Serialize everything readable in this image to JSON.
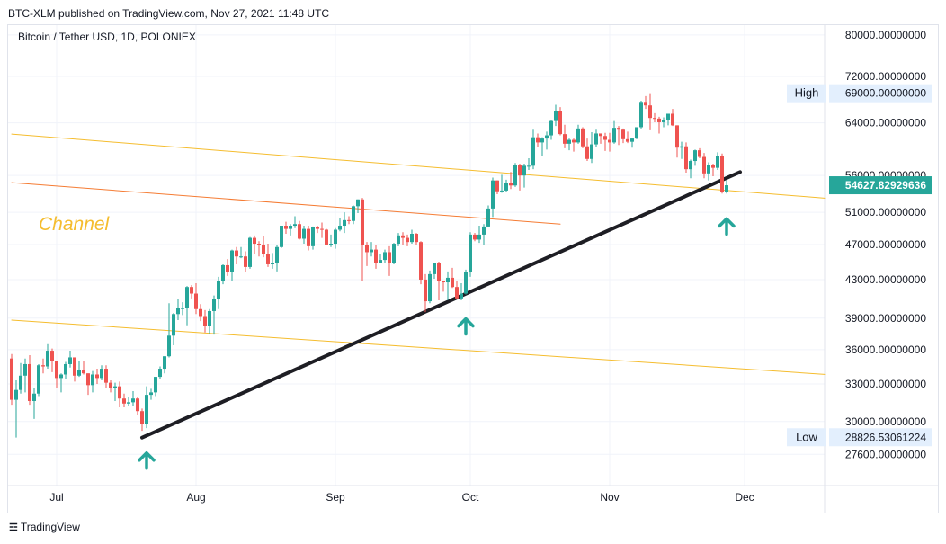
{
  "header": {
    "published_text": "BTC-XLM published on TradingView.com, Nov 27, 2021 11:48 UTC"
  },
  "footer": {
    "logo_icon": "tradingview-logo-icon",
    "brand": "TradingView"
  },
  "chart_data": {
    "type": "candlestick",
    "title": "Bitcoin / Tether USD, 1D, POLONIEX",
    "annotation": "Channel",
    "colors": {
      "up": "#26a69a",
      "down": "#ef5350",
      "wick": "#131722",
      "channel": "#f5bd2f",
      "channel_mid": "#f57c34",
      "trendline": "#1e1e24",
      "arrow": "#26a69a",
      "current_price_bg": "#26a69a"
    },
    "y_scale": "log",
    "ylim": [
      25500,
      82000
    ],
    "x_ticks": [
      {
        "label": "Jul",
        "date": "2021-07-01"
      },
      {
        "label": "Aug",
        "date": "2021-08-01"
      },
      {
        "label": "Sep",
        "date": "2021-09-01"
      },
      {
        "label": "Oct",
        "date": "2021-10-01"
      },
      {
        "label": "Nov",
        "date": "2021-11-01"
      },
      {
        "label": "Dec",
        "date": "2021-12-01"
      }
    ],
    "y_ticks": [
      "80000.00000000",
      "72000.00000000",
      "64000.00000000",
      "56000.00000000",
      "51000.00000000",
      "47000.00000000",
      "43000.00000000",
      "39000.00000000",
      "36000.00000000",
      "33000.00000000",
      "30000.00000000",
      "27600.00000000"
    ],
    "high": {
      "label": "High",
      "value": "69000.00000000"
    },
    "low": {
      "label": "Low",
      "value": "28826.53061224"
    },
    "last_price": "54627.82929636",
    "lines": [
      {
        "name": "channel-upper",
        "from": [
          "2021-06-21",
          62200
        ],
        "to": [
          "2021-12-31",
          52300
        ]
      },
      {
        "name": "channel-middle",
        "from": [
          "2021-06-21",
          55000
        ],
        "to": [
          "2021-10-21",
          49500
        ]
      },
      {
        "name": "channel-lower",
        "from": [
          "2021-06-21",
          38800
        ],
        "to": [
          "2021-12-31",
          33500
        ]
      },
      {
        "name": "support-trendline",
        "from": [
          "2021-07-20",
          28800
        ],
        "to": [
          "2021-11-30",
          56500
        ]
      }
    ],
    "arrows": [
      {
        "date": "2021-07-21",
        "value": 28600
      },
      {
        "date": "2021-09-30",
        "value": 40200
      },
      {
        "date": "2021-11-27",
        "value": 51800
      }
    ],
    "candles": [
      [
        "2021-06-21",
        35200,
        35600,
        31300,
        31700
      ],
      [
        "2021-06-22",
        31700,
        33300,
        28800,
        32500
      ],
      [
        "2021-06-23",
        32500,
        34800,
        32200,
        33700
      ],
      [
        "2021-06-24",
        33700,
        35200,
        32300,
        34700
      ],
      [
        "2021-06-25",
        34700,
        35500,
        31300,
        31600
      ],
      [
        "2021-06-26",
        31600,
        32700,
        30200,
        32200
      ],
      [
        "2021-06-27",
        32200,
        34700,
        32000,
        34600
      ],
      [
        "2021-06-28",
        34600,
        35200,
        33900,
        34500
      ],
      [
        "2021-06-29",
        34500,
        36500,
        34300,
        35900
      ],
      [
        "2021-06-30",
        35900,
        36100,
        34000,
        35000
      ],
      [
        "2021-07-01",
        35000,
        35000,
        32700,
        33500
      ],
      [
        "2021-07-02",
        33500,
        33900,
        32300,
        33800
      ],
      [
        "2021-07-03",
        33800,
        34900,
        33400,
        34700
      ],
      [
        "2021-07-04",
        34700,
        35900,
        34400,
        35300
      ],
      [
        "2021-07-05",
        35300,
        35300,
        33200,
        33700
      ],
      [
        "2021-07-06",
        33700,
        35000,
        33600,
        34200
      ],
      [
        "2021-07-07",
        34200,
        35000,
        33800,
        33900
      ],
      [
        "2021-07-08",
        33900,
        33900,
        32100,
        32900
      ],
      [
        "2021-07-09",
        32900,
        34100,
        32300,
        33800
      ],
      [
        "2021-07-10",
        33800,
        34300,
        33000,
        33500
      ],
      [
        "2021-07-11",
        33500,
        34600,
        33300,
        34300
      ],
      [
        "2021-07-12",
        34300,
        34600,
        32700,
        33100
      ],
      [
        "2021-07-13",
        33100,
        33300,
        32300,
        32700
      ],
      [
        "2021-07-14",
        32700,
        33100,
        31600,
        32800
      ],
      [
        "2021-07-15",
        32800,
        33200,
        31100,
        31800
      ],
      [
        "2021-07-16",
        31800,
        32200,
        31100,
        31400
      ],
      [
        "2021-07-17",
        31400,
        31900,
        31200,
        31500
      ],
      [
        "2021-07-18",
        31500,
        32400,
        31200,
        31800
      ],
      [
        "2021-07-19",
        31800,
        31900,
        30500,
        30800
      ],
      [
        "2021-07-20",
        30800,
        31000,
        29300,
        29800
      ],
      [
        "2021-07-21",
        29800,
        32800,
        29500,
        32100
      ],
      [
        "2021-07-22",
        32100,
        32600,
        31700,
        32300
      ],
      [
        "2021-07-23",
        32300,
        33600,
        32000,
        33600
      ],
      [
        "2021-07-24",
        33600,
        34500,
        33400,
        34300
      ],
      [
        "2021-07-25",
        34300,
        35400,
        33900,
        35400
      ],
      [
        "2021-07-26",
        35400,
        40500,
        35300,
        37300
      ],
      [
        "2021-07-27",
        37300,
        39500,
        36400,
        39400
      ],
      [
        "2021-07-28",
        39400,
        40900,
        38800,
        40000
      ],
      [
        "2021-07-29",
        40000,
        40600,
        39300,
        40000
      ],
      [
        "2021-07-30",
        40000,
        42300,
        38300,
        42200
      ],
      [
        "2021-07-31",
        42200,
        42400,
        41000,
        41500
      ],
      [
        "2021-08-01",
        41500,
        42600,
        39400,
        39900
      ],
      [
        "2021-08-02",
        39900,
        40400,
        38700,
        39200
      ],
      [
        "2021-08-03",
        39200,
        39800,
        37600,
        38200
      ],
      [
        "2021-08-04",
        38200,
        39900,
        37500,
        39700
      ],
      [
        "2021-08-05",
        39700,
        41300,
        37400,
        40900
      ],
      [
        "2021-08-06",
        40900,
        43300,
        39900,
        42800
      ],
      [
        "2021-08-07",
        42800,
        44700,
        42500,
        44600
      ],
      [
        "2021-08-08",
        44600,
        45300,
        43400,
        43800
      ],
      [
        "2021-08-09",
        43800,
        46400,
        42800,
        46300
      ],
      [
        "2021-08-10",
        46300,
        46700,
        44700,
        45600
      ],
      [
        "2021-08-11",
        45600,
        46700,
        45400,
        45600
      ],
      [
        "2021-08-12",
        45600,
        46200,
        43800,
        44400
      ],
      [
        "2021-08-13",
        44400,
        47900,
        44200,
        47800
      ],
      [
        "2021-08-14",
        47800,
        48100,
        45900,
        47100
      ],
      [
        "2021-08-15",
        47100,
        47400,
        45600,
        47000
      ],
      [
        "2021-08-16",
        47000,
        48000,
        45500,
        45900
      ],
      [
        "2021-08-17",
        45900,
        47100,
        44400,
        44700
      ],
      [
        "2021-08-18",
        44700,
        46000,
        44200,
        44800
      ],
      [
        "2021-08-19",
        44800,
        47000,
        43900,
        46700
      ],
      [
        "2021-08-20",
        46700,
        49300,
        46600,
        49300
      ],
      [
        "2021-08-21",
        49300,
        49800,
        48300,
        48900
      ],
      [
        "2021-08-22",
        48900,
        49500,
        48100,
        49300
      ],
      [
        "2021-08-23",
        49300,
        50500,
        49000,
        49500
      ],
      [
        "2021-08-24",
        49500,
        49900,
        47600,
        47700
      ],
      [
        "2021-08-25",
        47700,
        49300,
        47100,
        48900
      ],
      [
        "2021-08-26",
        48900,
        49300,
        46300,
        46800
      ],
      [
        "2021-08-27",
        46800,
        49200,
        46400,
        49100
      ],
      [
        "2021-08-28",
        49100,
        49300,
        48400,
        48900
      ],
      [
        "2021-08-29",
        48900,
        49700,
        47800,
        48800
      ],
      [
        "2021-08-30",
        48800,
        48900,
        46900,
        47000
      ],
      [
        "2021-08-31",
        47000,
        48200,
        46700,
        47100
      ],
      [
        "2021-09-01",
        47100,
        49000,
        46500,
        48800
      ],
      [
        "2021-09-02",
        48800,
        50300,
        48600,
        49300
      ],
      [
        "2021-09-03",
        49300,
        51000,
        48400,
        50000
      ],
      [
        "2021-09-04",
        50000,
        50500,
        49500,
        49900
      ],
      [
        "2021-09-05",
        49900,
        51900,
        49500,
        51800
      ],
      [
        "2021-09-06",
        51800,
        52700,
        50900,
        52700
      ],
      [
        "2021-09-07",
        52700,
        52900,
        42900,
        46900
      ],
      [
        "2021-09-08",
        46900,
        47300,
        44500,
        46100
      ],
      [
        "2021-09-09",
        46100,
        47300,
        45600,
        46400
      ],
      [
        "2021-09-10",
        46400,
        47000,
        44200,
        44900
      ],
      [
        "2021-09-11",
        44900,
        45900,
        44800,
        45200
      ],
      [
        "2021-09-12",
        45200,
        46400,
        44800,
        46100
      ],
      [
        "2021-09-13",
        46100,
        46800,
        43400,
        44900
      ],
      [
        "2021-09-14",
        44900,
        47200,
        44700,
        47100
      ],
      [
        "2021-09-15",
        47100,
        48400,
        46800,
        48100
      ],
      [
        "2021-09-16",
        48100,
        48500,
        47000,
        47800
      ],
      [
        "2021-09-17",
        47800,
        48200,
        46800,
        47300
      ],
      [
        "2021-09-18",
        47300,
        48800,
        47100,
        48300
      ],
      [
        "2021-09-19",
        48300,
        48400,
        46900,
        47300
      ],
      [
        "2021-09-20",
        47300,
        47400,
        42500,
        43000
      ],
      [
        "2021-09-21",
        43000,
        43600,
        39600,
        40700
      ],
      [
        "2021-09-22",
        40700,
        44000,
        40500,
        43600
      ],
      [
        "2021-09-23",
        43600,
        44900,
        43100,
        44900
      ],
      [
        "2021-09-24",
        44900,
        45000,
        40800,
        42800
      ],
      [
        "2021-09-25",
        42800,
        42900,
        41700,
        42700
      ],
      [
        "2021-09-26",
        42700,
        43900,
        40800,
        43200
      ],
      [
        "2021-09-27",
        43200,
        44300,
        42100,
        42200
      ],
      [
        "2021-09-28",
        42200,
        42800,
        40900,
        41000
      ],
      [
        "2021-09-29",
        41000,
        42600,
        40800,
        41500
      ],
      [
        "2021-09-30",
        41500,
        44100,
        41400,
        43800
      ],
      [
        "2021-10-01",
        43800,
        48500,
        43300,
        48200
      ],
      [
        "2021-10-02",
        48200,
        48400,
        47400,
        47600
      ],
      [
        "2021-10-03",
        47600,
        49300,
        47200,
        48200
      ],
      [
        "2021-10-04",
        48200,
        49500,
        46900,
        49200
      ],
      [
        "2021-10-05",
        49200,
        51900,
        49100,
        51500
      ],
      [
        "2021-10-06",
        51500,
        55700,
        50400,
        55300
      ],
      [
        "2021-10-07",
        55300,
        55300,
        53400,
        53800
      ],
      [
        "2021-10-08",
        53800,
        56100,
        53600,
        53900
      ],
      [
        "2021-10-09",
        53900,
        55400,
        53700,
        55000
      ],
      [
        "2021-10-10",
        55000,
        56500,
        54100,
        54600
      ],
      [
        "2021-10-11",
        54600,
        57800,
        54400,
        57500
      ],
      [
        "2021-10-12",
        57500,
        57700,
        53900,
        56000
      ],
      [
        "2021-10-13",
        56000,
        57700,
        54300,
        57400
      ],
      [
        "2021-10-14",
        57400,
        58500,
        56800,
        57400
      ],
      [
        "2021-10-15",
        57400,
        62900,
        56900,
        61700
      ],
      [
        "2021-10-16",
        61700,
        62300,
        60200,
        60900
      ],
      [
        "2021-10-17",
        60900,
        61700,
        58900,
        61500
      ],
      [
        "2021-10-18",
        61500,
        62600,
        59800,
        62000
      ],
      [
        "2021-10-19",
        62000,
        64400,
        61300,
        64300
      ],
      [
        "2021-10-20",
        64300,
        67000,
        63500,
        66000
      ],
      [
        "2021-10-21",
        66000,
        66600,
        62000,
        62200
      ],
      [
        "2021-10-22",
        62200,
        63700,
        60000,
        60700
      ],
      [
        "2021-10-23",
        60700,
        61500,
        59700,
        61300
      ],
      [
        "2021-10-24",
        61300,
        61500,
        59500,
        60900
      ],
      [
        "2021-10-25",
        60900,
        63700,
        60700,
        63100
      ],
      [
        "2021-10-26",
        63100,
        63300,
        60000,
        60300
      ],
      [
        "2021-10-27",
        60300,
        61500,
        58100,
        58400
      ],
      [
        "2021-10-28",
        58400,
        62500,
        57800,
        60600
      ],
      [
        "2021-10-29",
        60600,
        62900,
        60200,
        62300
      ],
      [
        "2021-10-30",
        62300,
        62300,
        60700,
        61900
      ],
      [
        "2021-10-31",
        61900,
        62400,
        59600,
        61300
      ],
      [
        "2021-11-01",
        61300,
        62400,
        59500,
        60900
      ],
      [
        "2021-11-02",
        60900,
        64300,
        60700,
        63200
      ],
      [
        "2021-11-03",
        63200,
        63500,
        60500,
        62900
      ],
      [
        "2021-11-04",
        62900,
        63100,
        60800,
        61400
      ],
      [
        "2021-11-05",
        61400,
        62600,
        60800,
        61000
      ],
      [
        "2021-11-06",
        61000,
        61600,
        60100,
        61500
      ],
      [
        "2021-11-07",
        61500,
        63300,
        61400,
        63300
      ],
      [
        "2021-11-08",
        63300,
        67700,
        63100,
        67500
      ],
      [
        "2021-11-09",
        67500,
        68500,
        66300,
        66900
      ],
      [
        "2021-11-10",
        66900,
        69000,
        62800,
        64800
      ],
      [
        "2021-11-11",
        64800,
        65600,
        64100,
        64700
      ],
      [
        "2021-11-12",
        64700,
        65000,
        62300,
        64100
      ],
      [
        "2021-11-13",
        64100,
        64900,
        63300,
        64400
      ],
      [
        "2021-11-14",
        64400,
        65500,
        63600,
        65500
      ],
      [
        "2021-11-15",
        65500,
        66300,
        63500,
        63600
      ],
      [
        "2021-11-16",
        63600,
        63600,
        58600,
        60100
      ],
      [
        "2021-11-17",
        60100,
        61000,
        58400,
        60300
      ],
      [
        "2021-11-18",
        60300,
        60900,
        56400,
        56900
      ],
      [
        "2021-11-19",
        56900,
        58300,
        55600,
        58100
      ],
      [
        "2021-11-20",
        58100,
        59800,
        57400,
        59700
      ],
      [
        "2021-11-21",
        59700,
        60000,
        58500,
        58700
      ],
      [
        "2021-11-22",
        58700,
        59300,
        55600,
        56300
      ],
      [
        "2021-11-23",
        56300,
        57900,
        55300,
        57500
      ],
      [
        "2021-11-24",
        57500,
        57700,
        55900,
        57100
      ],
      [
        "2021-11-25",
        57100,
        59400,
        56800,
        58900
      ],
      [
        "2021-11-26",
        58900,
        59200,
        53500,
        53700
      ],
      [
        "2021-11-27",
        53700,
        55300,
        53500,
        54628
      ]
    ]
  }
}
